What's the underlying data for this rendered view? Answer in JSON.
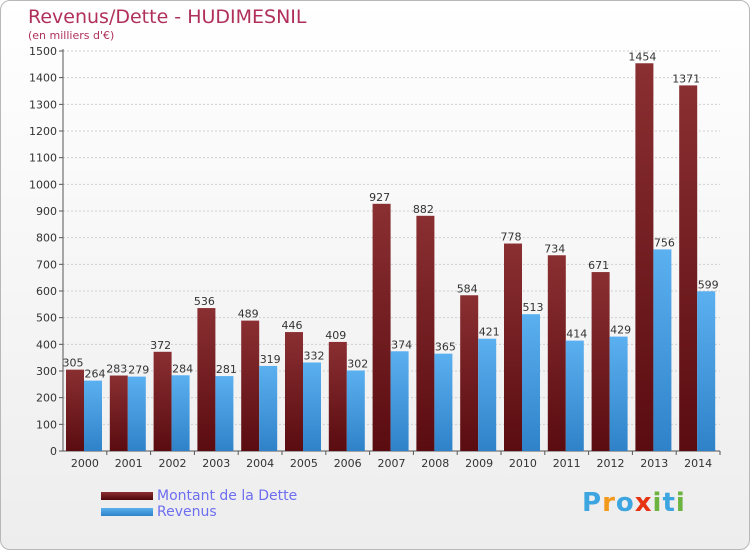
{
  "chart_data": {
    "type": "bar",
    "title": "Revenus/Dette - HUDIMESNIL",
    "subtitle": "(en milliers d'€)",
    "categories": [
      "2000",
      "2001",
      "2002",
      "2003",
      "2004",
      "2005",
      "2006",
      "2007",
      "2008",
      "2009",
      "2010",
      "2011",
      "2012",
      "2013",
      "2014"
    ],
    "series": [
      {
        "name": "Montant de la Dette",
        "color": "#7a1f22",
        "values": [
          305,
          283,
          372,
          536,
          489,
          446,
          409,
          927,
          882,
          584,
          778,
          734,
          671,
          1454,
          1371
        ]
      },
      {
        "name": "Revenus",
        "color": "#4aa3e8",
        "values": [
          264,
          279,
          284,
          281,
          319,
          332,
          302,
          374,
          365,
          421,
          513,
          414,
          429,
          756,
          599
        ]
      }
    ],
    "ylim": [
      0,
      1500
    ],
    "yticks": [
      0,
      100,
      200,
      300,
      400,
      500,
      600,
      700,
      800,
      900,
      1000,
      1100,
      1200,
      1300,
      1400,
      1500
    ],
    "grid": true,
    "legend_position": "bottom-left"
  },
  "logo": {
    "letters": [
      "P",
      "r",
      "o",
      "x",
      "i",
      "t",
      "i"
    ],
    "colors": [
      "#3da5e0",
      "#f39a1e",
      "#3da5e0",
      "#e63312",
      "#6cb33f",
      "#3da5e0",
      "#6cb33f"
    ]
  }
}
